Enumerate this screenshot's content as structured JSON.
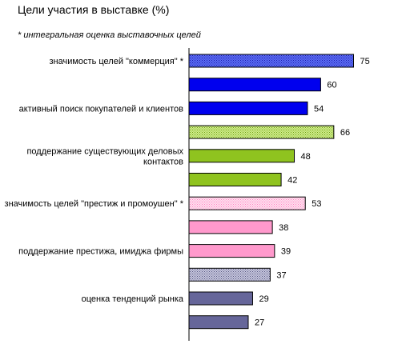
{
  "chart_data": {
    "type": "bar",
    "orientation": "horizontal",
    "title": "Цели участия в выставке (%)",
    "subtitle": "* интегральная оценка выставочных целей",
    "xlim": [
      0,
      80
    ],
    "grid": false,
    "legend": "none",
    "bars": [
      {
        "label": [
          "значимость целей \"коммерция\" *"
        ],
        "value": 75,
        "color": "#3a50e0",
        "pattern": "dots-blue"
      },
      {
        "label": [],
        "value": 60,
        "color": "#0000ee",
        "pattern": "solid"
      },
      {
        "label": [
          "активный поиск покупателей и клиентов"
        ],
        "value": 54,
        "color": "#0000ee",
        "pattern": "solid"
      },
      {
        "label": [],
        "value": 66,
        "color": "#b7e065",
        "pattern": "dots-green"
      },
      {
        "label": [
          "поддержание существующих деловых",
          "контактов"
        ],
        "value": 48,
        "color": "#8fc31f",
        "pattern": "solid"
      },
      {
        "label": [],
        "value": 42,
        "color": "#8fc31f",
        "pattern": "solid"
      },
      {
        "label": [
          "значимость целей \"престиж и промоушен\" *"
        ],
        "value": 53,
        "color": "#ffc6e2",
        "pattern": "dots-pink"
      },
      {
        "label": [],
        "value": 38,
        "color": "#ff99cc",
        "pattern": "solid"
      },
      {
        "label": [
          "поддержание престижа, имиджа фирмы"
        ],
        "value": 39,
        "color": "#ff99cc",
        "pattern": "solid"
      },
      {
        "label": [],
        "value": 37,
        "color": "#a6a6cc",
        "pattern": "dots-grey"
      },
      {
        "label": [
          "оценка тенденций рынка"
        ],
        "value": 29,
        "color": "#66669a",
        "pattern": "solid"
      },
      {
        "label": [],
        "value": 27,
        "color": "#66669a",
        "pattern": "solid"
      }
    ]
  }
}
